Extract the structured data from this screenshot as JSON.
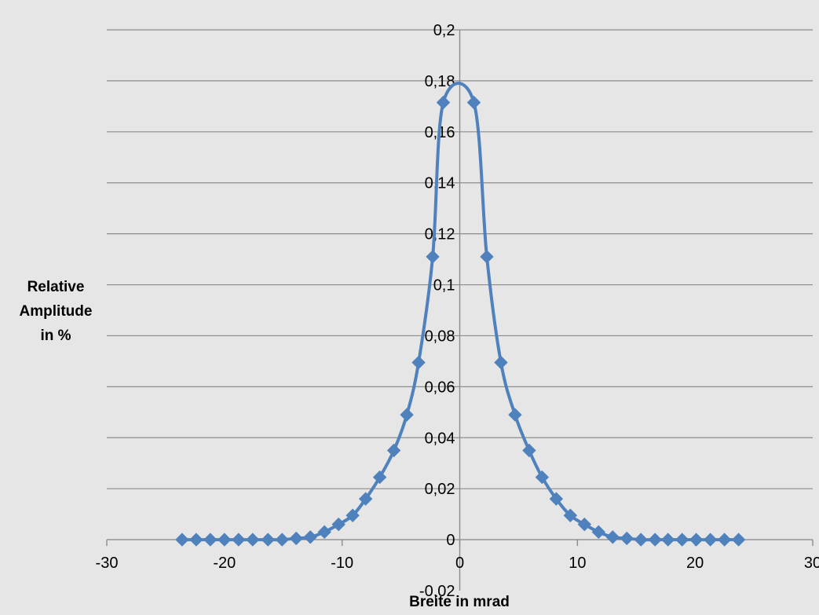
{
  "chart_data": {
    "type": "scatter",
    "title": "",
    "xlabel": "Breite in mrad",
    "ylabel": [
      "Relative",
      "Amplitude",
      "in %"
    ],
    "xlim": [
      -30,
      30
    ],
    "ylim": [
      -0.02,
      0.2
    ],
    "x_ticks": [
      "-30",
      "-20",
      "-10",
      "0",
      "10",
      "20",
      "30"
    ],
    "y_ticks": [
      "-0,02",
      "0",
      "0,02",
      "0,04",
      "0,06",
      "0,08",
      "0,1",
      "0,12",
      "0,14",
      "0,16",
      "0,18",
      "0,2"
    ],
    "grid": "horizontal",
    "line_color": "#4f81bd",
    "series": [
      {
        "marker": "diamond",
        "smooth": true,
        "x": [
          -23.6,
          -22.4,
          -21.2,
          -20.0,
          -18.8,
          -17.6,
          -16.3,
          -15.1,
          -13.9,
          -12.7,
          -11.5,
          -10.3,
          -9.1,
          -8.0,
          -6.8,
          -5.6,
          -4.5,
          -3.5,
          -2.3,
          -1.4,
          1.2,
          2.3,
          3.5,
          4.7,
          5.9,
          7.0,
          8.2,
          9.4,
          10.6,
          11.8,
          13.0,
          14.2,
          15.4,
          16.6,
          17.7,
          18.9,
          20.1,
          21.3,
          22.5,
          23.7
        ],
        "y": [
          0.0,
          0.0,
          0.0,
          0.0,
          0.0,
          0.0,
          0.0,
          0.0,
          0.0005,
          0.001,
          0.003,
          0.006,
          0.0095,
          0.016,
          0.0245,
          0.035,
          0.049,
          0.0695,
          0.111,
          0.1715,
          0.1715,
          0.111,
          0.0695,
          0.049,
          0.035,
          0.0245,
          0.016,
          0.0095,
          0.006,
          0.003,
          0.001,
          0.0005,
          0.0,
          0.0,
          0.0,
          0.0,
          0.0,
          0.0,
          0.0,
          0.0
        ]
      }
    ]
  }
}
